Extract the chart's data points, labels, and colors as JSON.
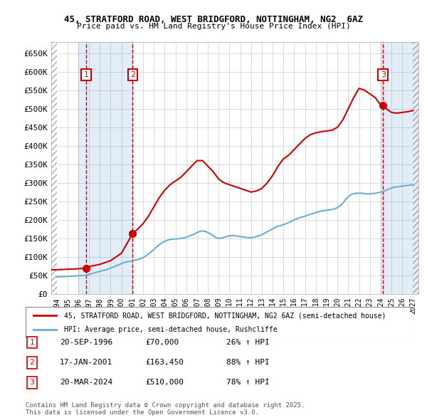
{
  "title_line1": "45, STRATFORD ROAD, WEST BRIDGFORD, NOTTINGHAM, NG2  6AZ",
  "title_line2": "Price paid vs. HM Land Registry's House Price Index (HPI)",
  "ylabel_ticks": [
    0,
    50000,
    100000,
    150000,
    200000,
    250000,
    300000,
    350000,
    400000,
    450000,
    500000,
    550000,
    600000,
    650000
  ],
  "ylabel_labels": [
    "£0",
    "£50K",
    "£100K",
    "£150K",
    "£200K",
    "£250K",
    "£300K",
    "£350K",
    "£400K",
    "£450K",
    "£500K",
    "£550K",
    "£600K",
    "£650K"
  ],
  "ylim": [
    0,
    680000
  ],
  "xlim_start": 1993.5,
  "xlim_end": 2027.5,
  "xtick_years": [
    1994,
    1995,
    1996,
    1997,
    1998,
    1999,
    2000,
    2001,
    2002,
    2003,
    2004,
    2005,
    2006,
    2007,
    2008,
    2009,
    2010,
    2011,
    2012,
    2013,
    2014,
    2015,
    2016,
    2017,
    2018,
    2019,
    2020,
    2021,
    2022,
    2023,
    2024,
    2025,
    2026,
    2027
  ],
  "hpi_line_color": "#6baed6",
  "price_line_color": "#cc0000",
  "sale_marker_color": "#cc0000",
  "annotation_box_color": "#cc0000",
  "hatch_color": "#d0d0d0",
  "blue_shade_color": "#ddeeff",
  "grid_color": "#cccccc",
  "bg_color": "#ffffff",
  "sales": [
    {
      "label": "1",
      "year": 1996.72,
      "price": 70000,
      "hpi_at_sale": 55556
    },
    {
      "label": "2",
      "year": 2001.04,
      "price": 163450,
      "hpi_at_sale": 86900
    },
    {
      "label": "3",
      "year": 2024.22,
      "price": 510000,
      "hpi_at_sale": 286517
    }
  ],
  "legend_entries": [
    "45, STRATFORD ROAD, WEST BRIDGFORD, NOTTINGHAM, NG2 6AZ (semi-detached house)",
    "HPI: Average price, semi-detached house, Rushcliffe"
  ],
  "table_rows": [
    {
      "num": "1",
      "date": "20-SEP-1996",
      "price": "£70,000",
      "change": "26% ↑ HPI"
    },
    {
      "num": "2",
      "date": "17-JAN-2001",
      "price": "£163,450",
      "change": "88% ↑ HPI"
    },
    {
      "num": "3",
      "date": "20-MAR-2024",
      "price": "£510,000",
      "change": "78% ↑ HPI"
    }
  ],
  "footnote": "Contains HM Land Registry data © Crown copyright and database right 2025.\nThis data is licensed under the Open Government Licence v3.0.",
  "hpi_data_x": [
    1994,
    1994.25,
    1994.5,
    1994.75,
    1995,
    1995.25,
    1995.5,
    1995.75,
    1996,
    1996.25,
    1996.5,
    1996.75,
    1997,
    1997.25,
    1997.5,
    1997.75,
    1998,
    1998.25,
    1998.5,
    1998.75,
    1999,
    1999.25,
    1999.5,
    1999.75,
    2000,
    2000.25,
    2000.5,
    2000.75,
    2001,
    2001.25,
    2001.5,
    2001.75,
    2002,
    2002.25,
    2002.5,
    2002.75,
    2003,
    2003.25,
    2003.5,
    2003.75,
    2004,
    2004.25,
    2004.5,
    2004.75,
    2005,
    2005.25,
    2005.5,
    2005.75,
    2006,
    2006.25,
    2006.5,
    2006.75,
    2007,
    2007.25,
    2007.5,
    2007.75,
    2008,
    2008.25,
    2008.5,
    2008.75,
    2009,
    2009.25,
    2009.5,
    2009.75,
    2010,
    2010.25,
    2010.5,
    2010.75,
    2011,
    2011.25,
    2011.5,
    2011.75,
    2012,
    2012.25,
    2012.5,
    2012.75,
    2013,
    2013.25,
    2013.5,
    2013.75,
    2014,
    2014.25,
    2014.5,
    2014.75,
    2015,
    2015.25,
    2015.5,
    2015.75,
    2016,
    2016.25,
    2016.5,
    2016.75,
    2017,
    2017.25,
    2017.5,
    2017.75,
    2018,
    2018.25,
    2018.5,
    2018.75,
    2019,
    2019.25,
    2019.5,
    2019.75,
    2020,
    2020.25,
    2020.5,
    2020.75,
    2021,
    2021.25,
    2021.5,
    2021.75,
    2022,
    2022.25,
    2022.5,
    2022.75,
    2023,
    2023.25,
    2023.5,
    2023.75,
    2024,
    2024.25,
    2024.5,
    2024.75,
    2025,
    2025.25,
    2025.5,
    2025.75,
    2026,
    2026.25,
    2026.5,
    2026.75,
    2027
  ],
  "hpi_data_y": [
    46000,
    46500,
    47000,
    47200,
    47500,
    47800,
    48200,
    48500,
    49000,
    49500,
    50000,
    51000,
    53000,
    55000,
    57000,
    59000,
    61000,
    63000,
    65000,
    67000,
    70000,
    73000,
    76000,
    79000,
    82000,
    85000,
    87000,
    88000,
    89000,
    91000,
    93000,
    95000,
    98000,
    103000,
    108000,
    114000,
    120000,
    127000,
    133000,
    138000,
    142000,
    145000,
    147000,
    148000,
    148500,
    149000,
    150000,
    151000,
    153000,
    156000,
    159000,
    162000,
    166000,
    169000,
    170000,
    169000,
    166000,
    162000,
    157000,
    152000,
    150000,
    151000,
    153000,
    155000,
    157000,
    158000,
    157000,
    156000,
    155000,
    154000,
    153000,
    152000,
    152000,
    153000,
    155000,
    157000,
    160000,
    164000,
    168000,
    172000,
    176000,
    180000,
    183000,
    185000,
    187000,
    190000,
    193000,
    196000,
    200000,
    203000,
    206000,
    208000,
    210000,
    213000,
    215000,
    217000,
    220000,
    222000,
    224000,
    225000,
    226000,
    227000,
    228000,
    230000,
    233000,
    238000,
    245000,
    255000,
    263000,
    268000,
    271000,
    272000,
    272000,
    272000,
    271000,
    270000,
    270000,
    271000,
    272000,
    273000,
    275000,
    277000,
    280000,
    283000,
    286000,
    288000,
    289000,
    290000,
    291000,
    292000,
    293000,
    294000,
    295000
  ],
  "price_data_x": [
    1993.5,
    1996.0,
    1996.72,
    1997.0,
    1998.0,
    1999.0,
    2000.0,
    2001.04,
    2001.5,
    2002.0,
    2002.5,
    2003.0,
    2003.5,
    2004.0,
    2004.5,
    2005.0,
    2005.5,
    2006.0,
    2006.5,
    2007.0,
    2007.5,
    2008.0,
    2008.5,
    2009.0,
    2009.5,
    2010.0,
    2010.5,
    2011.0,
    2011.5,
    2012.0,
    2012.5,
    2013.0,
    2013.5,
    2014.0,
    2014.5,
    2015.0,
    2015.5,
    2016.0,
    2016.5,
    2017.0,
    2017.5,
    2018.0,
    2018.5,
    2019.0,
    2019.5,
    2020.0,
    2020.5,
    2021.0,
    2021.5,
    2022.0,
    2022.5,
    2023.0,
    2023.5,
    2024.0,
    2024.22,
    2024.5,
    2025.0,
    2025.5,
    2026.0,
    2026.5,
    2027.0
  ],
  "price_data_y": [
    65000,
    68000,
    70000,
    74000,
    80000,
    90000,
    110000,
    163450,
    175000,
    190000,
    210000,
    235000,
    260000,
    280000,
    295000,
    305000,
    315000,
    330000,
    345000,
    360000,
    360000,
    345000,
    330000,
    310000,
    300000,
    295000,
    290000,
    285000,
    280000,
    275000,
    278000,
    285000,
    300000,
    320000,
    345000,
    365000,
    375000,
    390000,
    405000,
    420000,
    430000,
    435000,
    438000,
    440000,
    442000,
    450000,
    470000,
    500000,
    530000,
    555000,
    550000,
    540000,
    530000,
    510000,
    510000,
    500000,
    490000,
    488000,
    490000,
    492000,
    495000
  ]
}
